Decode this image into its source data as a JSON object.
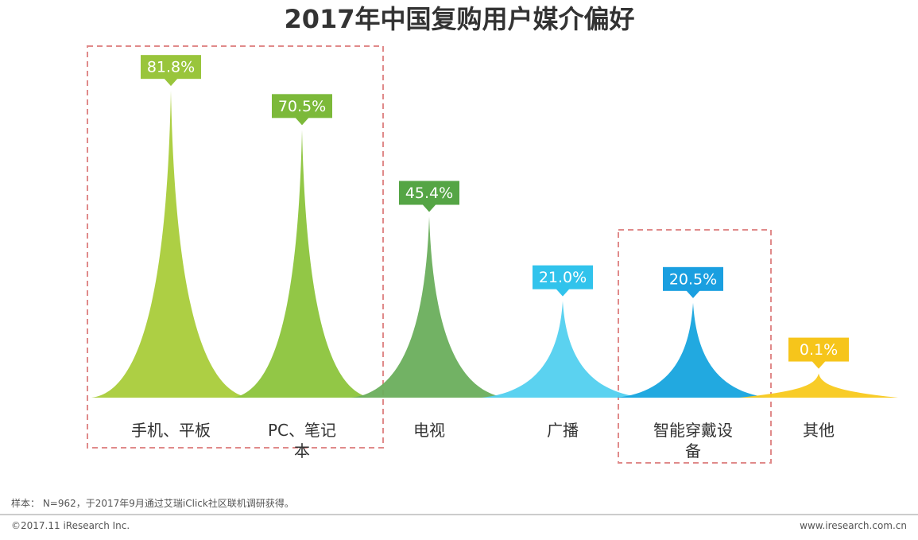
{
  "chart_data": {
    "type": "peak",
    "title": "2017年中国复购用户媒介偏好",
    "categories": [
      "手机、平板",
      "PC、笔记本",
      "电视",
      "广播",
      "智能穿戴设备",
      "其他"
    ],
    "values": [
      81.8,
      70.5,
      45.4,
      21.0,
      20.5,
      0.1
    ],
    "value_labels": [
      "81.8%",
      "70.5%",
      "45.4%",
      "21.0%",
      "20.5%",
      "0.1%"
    ],
    "colors": [
      "#a9cc3a",
      "#8cc43c",
      "#6aae5c",
      "#52d0ef",
      "#16a4de",
      "#f8c91c"
    ],
    "label_colors": [
      "#99c53c",
      "#7cb93a",
      "#55a545",
      "#31c3ec",
      "#1a9fe0",
      "#f6c51b"
    ]
  },
  "footer": {
    "note": "样本： N=962，于2017年9月通过艾瑞iClick社区联机调研获得。",
    "copyright": "©2017.11 iResearch Inc.",
    "website": "www.iresearch.com.cn"
  }
}
